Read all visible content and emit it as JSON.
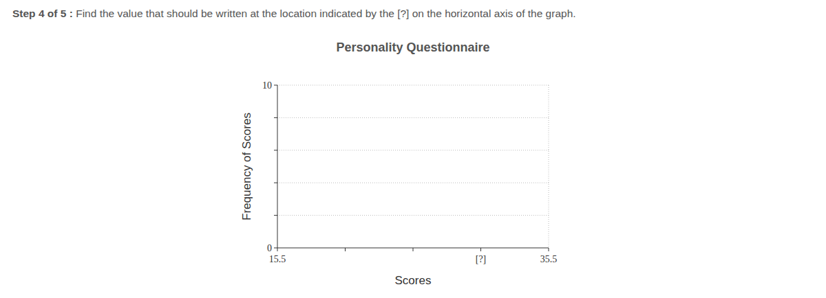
{
  "header": {
    "step": "Step 4 of 5 :",
    "question": "Find the value that should be written at the location indicated by the [?] on the horizontal axis of the graph."
  },
  "chart_data": {
    "type": "histogram",
    "title": "Personality Questionnaire",
    "x_label": "Scores",
    "y_label": "Frequency of Scores",
    "xlim": [
      15.5,
      35.5
    ],
    "xticks": [
      15.5,
      {
        "value": 20.5,
        "label": null
      },
      {
        "value": 25.5,
        "label": null
      },
      {
        "value": 30.5,
        "label": "[?]"
      },
      35.5
    ],
    "ylim": [
      0,
      10
    ],
    "yticks": [
      0,
      {
        "value": 2,
        "label": null
      },
      {
        "value": 4,
        "label": null
      },
      {
        "value": 6,
        "label": null
      },
      {
        "value": 8,
        "label": null
      },
      10
    ],
    "grid": true
  }
}
